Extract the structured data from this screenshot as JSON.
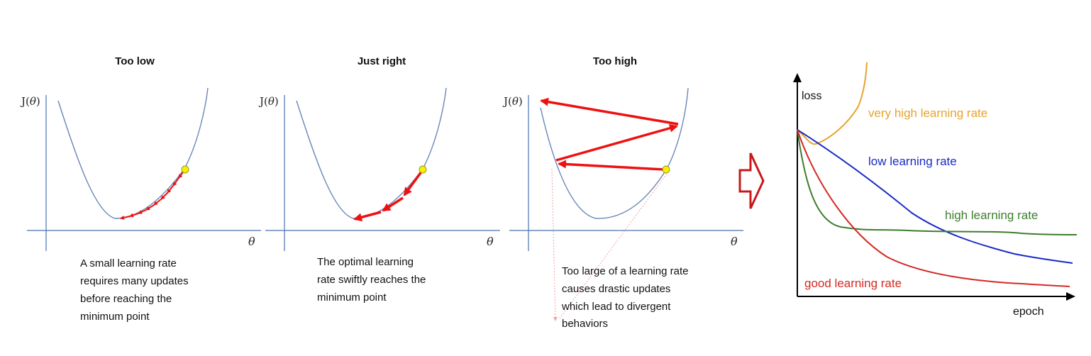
{
  "panels": [
    {
      "title": "Too low",
      "ylabel_prefix": "J",
      "ylabel_var": "θ",
      "xlabel": "θ",
      "caption": [
        "A small learning rate",
        "requires many updates",
        "before reaching the",
        "minimum point"
      ]
    },
    {
      "title": "Just right",
      "ylabel_prefix": "J",
      "ylabel_var": "θ",
      "xlabel": "θ",
      "caption": [
        "The optimal learning",
        "rate swiftly reaches the",
        "minimum point"
      ]
    },
    {
      "title": "Too high",
      "ylabel_prefix": "J",
      "ylabel_var": "θ",
      "xlabel": "θ",
      "caption": [
        "Too large of a learning rate",
        "causes drastic updates",
        "which lead to divergent",
        "behaviors"
      ]
    }
  ],
  "loss_chart": {
    "ylabel": "loss",
    "xlabel": "epoch",
    "series": [
      {
        "name": "very high learning rate",
        "color": "#e8a32e"
      },
      {
        "name": "low learning rate",
        "color": "#1a2bc7"
      },
      {
        "name": "high learning rate",
        "color": "#3e7d2e"
      },
      {
        "name": "good learning rate",
        "color": "#d42a24"
      }
    ]
  },
  "colors": {
    "arrow": "#ee1111",
    "point": "#f5f100",
    "transition_arrow": "#c8181c"
  },
  "icons": {
    "transition": "hollow-right-arrow-icon"
  }
}
